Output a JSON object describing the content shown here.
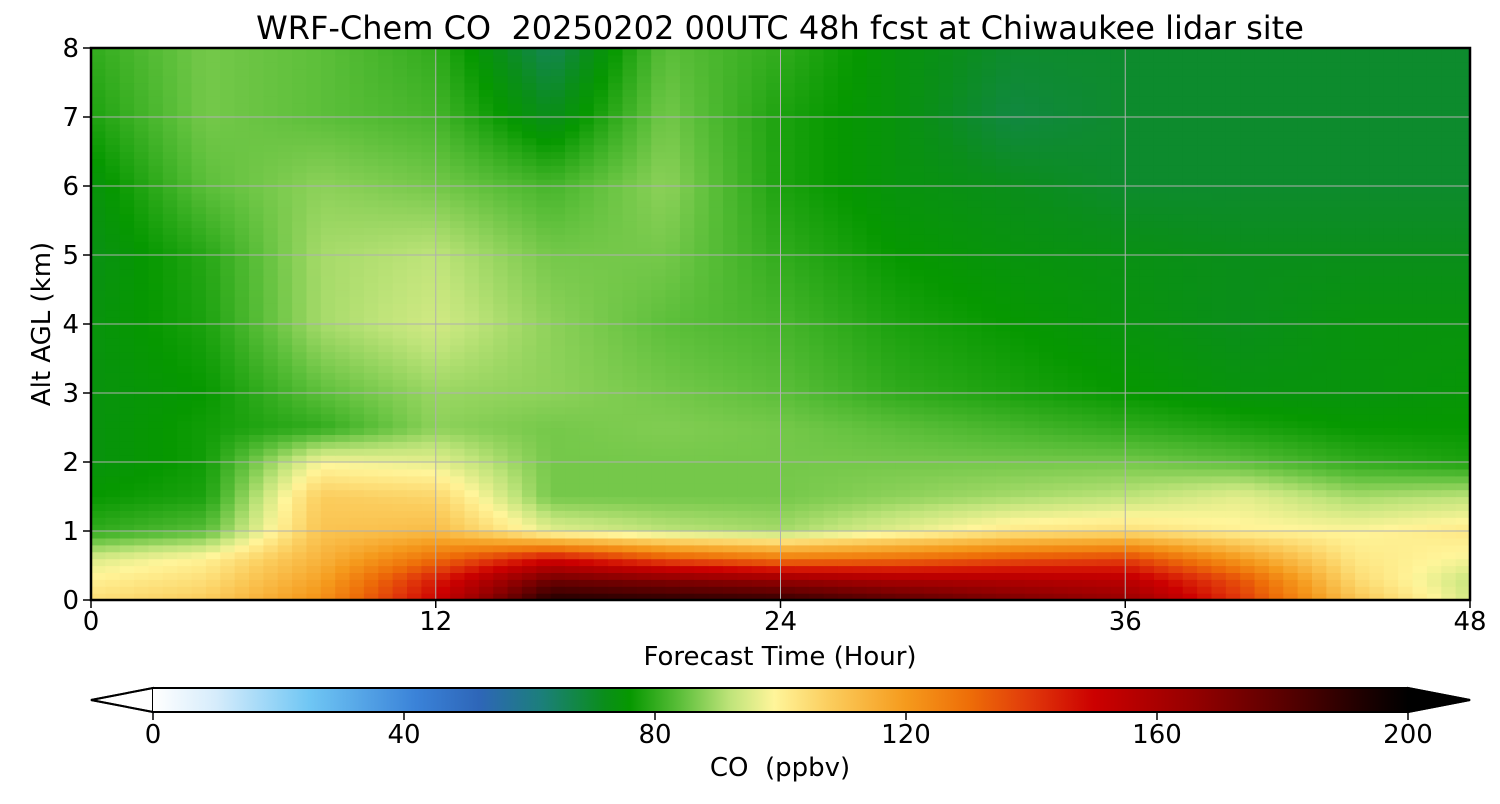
{
  "chart_data": {
    "type": "heatmap",
    "title": "WRF-Chem CO  20250202 00UTC 48h fcst at Chiwaukee lidar site",
    "xlabel": "Forecast Time (Hour)",
    "ylabel": "Alt AGL (km)",
    "xlim": [
      0,
      48
    ],
    "ylim": [
      0,
      8
    ],
    "x_ticks": [
      "0",
      "12",
      "24",
      "36",
      "48"
    ],
    "y_ticks": [
      "0",
      "1",
      "2",
      "3",
      "4",
      "5",
      "6",
      "7",
      "8"
    ],
    "grid": true,
    "x": [
      0,
      4,
      8,
      12,
      16,
      20,
      24,
      28,
      32,
      36,
      40,
      44,
      48
    ],
    "y": [
      0,
      0.3,
      0.6,
      1.0,
      1.5,
      2.0,
      2.5,
      3.0,
      4.0,
      5.0,
      6.0,
      7.0,
      8.0
    ],
    "z_ppbv": [
      [
        104,
        108,
        122,
        150,
        192,
        190,
        188,
        180,
        172,
        165,
        140,
        110,
        94
      ],
      [
        100,
        104,
        118,
        145,
        175,
        170,
        165,
        160,
        158,
        155,
        135,
        105,
        93
      ],
      [
        95,
        100,
        114,
        130,
        148,
        135,
        128,
        130,
        135,
        138,
        120,
        102,
        98
      ],
      [
        80,
        84,
        110,
        112,
        96,
        92,
        90,
        96,
        102,
        104,
        100,
        99,
        102
      ],
      [
        76,
        78,
        108,
        106,
        86,
        86,
        86,
        88,
        90,
        92,
        96,
        90,
        92
      ],
      [
        74,
        77,
        98,
        96,
        86,
        86,
        86,
        86,
        86,
        86,
        84,
        80,
        78
      ],
      [
        74,
        77,
        80,
        88,
        86,
        87,
        86,
        84,
        82,
        80,
        78,
        76,
        76
      ],
      [
        74,
        76,
        84,
        89,
        88,
        86,
        84,
        80,
        78,
        76,
        74,
        74,
        75
      ],
      [
        74,
        78,
        90,
        94,
        88,
        84,
        82,
        78,
        76,
        74,
        72,
        74,
        74
      ],
      [
        73,
        79,
        90,
        92,
        86,
        86,
        80,
        76,
        74,
        73,
        72,
        72,
        72
      ],
      [
        74,
        84,
        88,
        86,
        82,
        88,
        78,
        74,
        72,
        70,
        70,
        70,
        70
      ],
      [
        78,
        86,
        84,
        82,
        72,
        86,
        78,
        74,
        68,
        70,
        70,
        70,
        70
      ],
      [
        80,
        86,
        84,
        80,
        66,
        84,
        80,
        74,
        70,
        70,
        70,
        70,
        70
      ]
    ],
    "colorbar": {
      "label": "CO  (ppbv)",
      "min": 0,
      "max": 200,
      "extend": "both",
      "ticks": [
        "0",
        "40",
        "80",
        "120",
        "160",
        "200"
      ],
      "stops": [
        {
          "v": 0,
          "c": "#ffffff"
        },
        {
          "v": 10,
          "c": "#d6ecfb"
        },
        {
          "v": 25,
          "c": "#6fc6f4"
        },
        {
          "v": 42,
          "c": "#3a82d8"
        },
        {
          "v": 52,
          "c": "#2e66b8"
        },
        {
          "v": 62,
          "c": "#1b7f7a"
        },
        {
          "v": 72,
          "c": "#0a8e1a"
        },
        {
          "v": 76,
          "c": "#069800"
        },
        {
          "v": 84,
          "c": "#5cbf3a"
        },
        {
          "v": 92,
          "c": "#bfe47a"
        },
        {
          "v": 99,
          "c": "#fff59a"
        },
        {
          "v": 108,
          "c": "#fbcc5c"
        },
        {
          "v": 120,
          "c": "#f59a1c"
        },
        {
          "v": 130,
          "c": "#ee6e08"
        },
        {
          "v": 140,
          "c": "#e0370a"
        },
        {
          "v": 150,
          "c": "#cc0000"
        },
        {
          "v": 165,
          "c": "#980000"
        },
        {
          "v": 180,
          "c": "#5a0000"
        },
        {
          "v": 195,
          "c": "#140000"
        },
        {
          "v": 200,
          "c": "#000000"
        }
      ]
    }
  }
}
